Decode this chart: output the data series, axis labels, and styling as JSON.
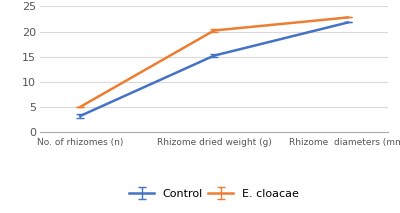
{
  "categories": [
    "No. of rhizomes (n)",
    "Rhizome dried weight (g)",
    "Rhizome  diameters (mm)"
  ],
  "control_values": [
    3.2,
    15.2,
    21.8
  ],
  "ecloacae_values": [
    5.0,
    20.2,
    22.8
  ],
  "control_errors": [
    0.45,
    0.3,
    0.0
  ],
  "ecloacae_errors": [
    0.0,
    0.35,
    0.0
  ],
  "control_color": "#4472C4",
  "ecloacae_color": "#ED7D31",
  "ylim": [
    0,
    25
  ],
  "yticks": [
    0,
    5,
    10,
    15,
    20,
    25
  ],
  "legend_labels": [
    "Control",
    "E. cloacae"
  ],
  "background_color": "#ffffff",
  "grid_color": "#d9d9d9",
  "figsize": [
    4.0,
    2.13
  ],
  "dpi": 100
}
